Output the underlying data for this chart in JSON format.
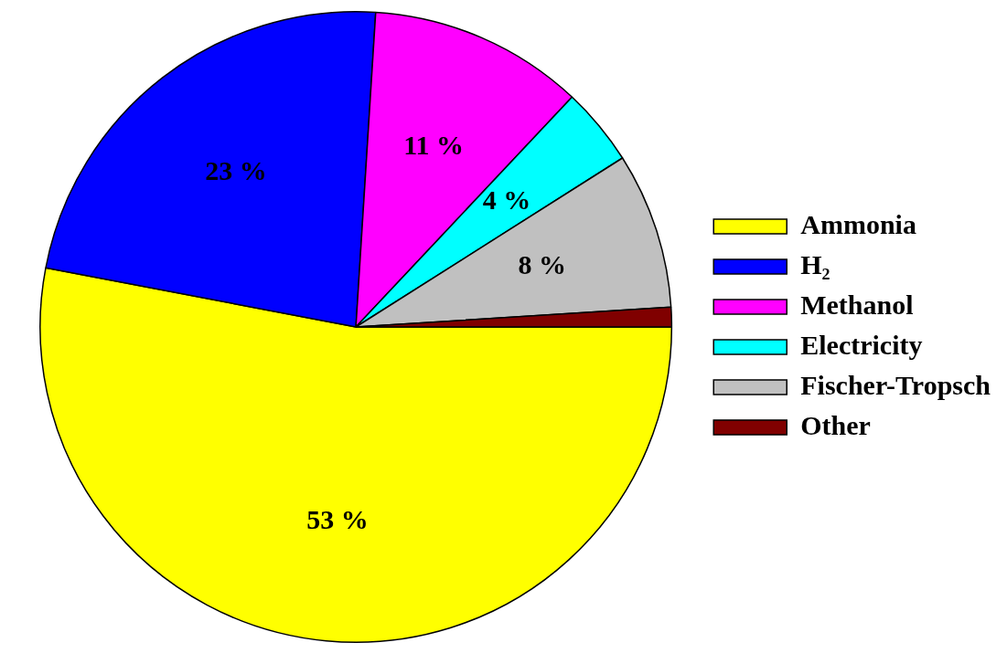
{
  "chart_data": {
    "type": "pie",
    "categories": [
      "Ammonia",
      "H₂",
      "Methanol",
      "Electricity",
      "Fischer-Tropsch",
      "Other"
    ],
    "values": [
      53,
      23,
      11,
      4,
      8,
      1
    ],
    "colors": [
      "#ffff00",
      "#0000ff",
      "#ff00ff",
      "#00ffff",
      "#c0c0c0",
      "#800000"
    ],
    "value_labels": [
      "53 %",
      "23 %",
      "11 %",
      "4 %",
      "8 %",
      null
    ],
    "legend": "right"
  }
}
